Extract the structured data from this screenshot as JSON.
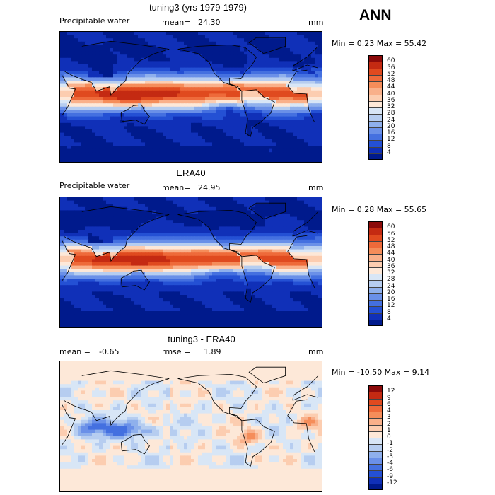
{
  "season_label": "ANN",
  "chart_data": [
    {
      "type": "heatmap",
      "title": "tuning3 (yrs 1979-1979)",
      "field_label": "Precipitable water",
      "units": "mm",
      "mean_label": "mean=",
      "mean_value": "24.30",
      "minmax_text": "Min =   0.23 Max =  55.42",
      "min": 0.23,
      "max": 55.42,
      "colorbar_levels": [
        "60",
        "56",
        "52",
        "48",
        "44",
        "40",
        "36",
        "32",
        "28",
        "24",
        "20",
        "16",
        "12",
        "8",
        "4"
      ],
      "colorbar_colors": [
        "#8b0a0a",
        "#c42a12",
        "#e04a1f",
        "#ee6a3a",
        "#f58d5a",
        "#f9b08a",
        "#fccdb0",
        "#fde8d8",
        "#d8e6f6",
        "#b6cdf0",
        "#8fb0ec",
        "#6a90e8",
        "#4470e0",
        "#2450d4",
        "#1030b8",
        "#001a8c"
      ]
    },
    {
      "type": "heatmap",
      "title": "ERA40",
      "field_label": "Precipitable water",
      "units": "mm",
      "mean_label": "mean=",
      "mean_value": "24.95",
      "minmax_text": "Min =   0.28 Max =  55.65",
      "min": 0.28,
      "max": 55.65,
      "colorbar_levels": [
        "60",
        "56",
        "52",
        "48",
        "44",
        "40",
        "36",
        "32",
        "28",
        "24",
        "20",
        "16",
        "12",
        "8",
        "4"
      ],
      "colorbar_colors": [
        "#8b0a0a",
        "#c42a12",
        "#e04a1f",
        "#ee6a3a",
        "#f58d5a",
        "#f9b08a",
        "#fccdb0",
        "#fde8d8",
        "#d8e6f6",
        "#b6cdf0",
        "#8fb0ec",
        "#6a90e8",
        "#4470e0",
        "#2450d4",
        "#1030b8",
        "#001a8c"
      ]
    },
    {
      "type": "heatmap",
      "title": "tuning3 - ERA40",
      "units": "mm",
      "mean_label": "mean =",
      "mean_value": "-0.65",
      "rmse_label": "rmse =",
      "rmse_value": "1.89",
      "minmax_text": "Min = -10.50 Max =   9.14",
      "min": -10.5,
      "max": 9.14,
      "colorbar_levels": [
        "12",
        "9",
        "6",
        "4",
        "3",
        "2",
        "1",
        "0",
        "-1",
        "-2",
        "-3",
        "-4",
        "-6",
        "-9",
        "-12"
      ],
      "colorbar_colors": [
        "#8b0a0a",
        "#c42a12",
        "#e04a1f",
        "#ee6a3a",
        "#f58d5a",
        "#f9b08a",
        "#fccdb0",
        "#fde8d8",
        "#d8e6f6",
        "#b6cdf0",
        "#8fb0ec",
        "#6a90e8",
        "#4470e0",
        "#2450d4",
        "#1030b8",
        "#001a8c"
      ]
    }
  ]
}
